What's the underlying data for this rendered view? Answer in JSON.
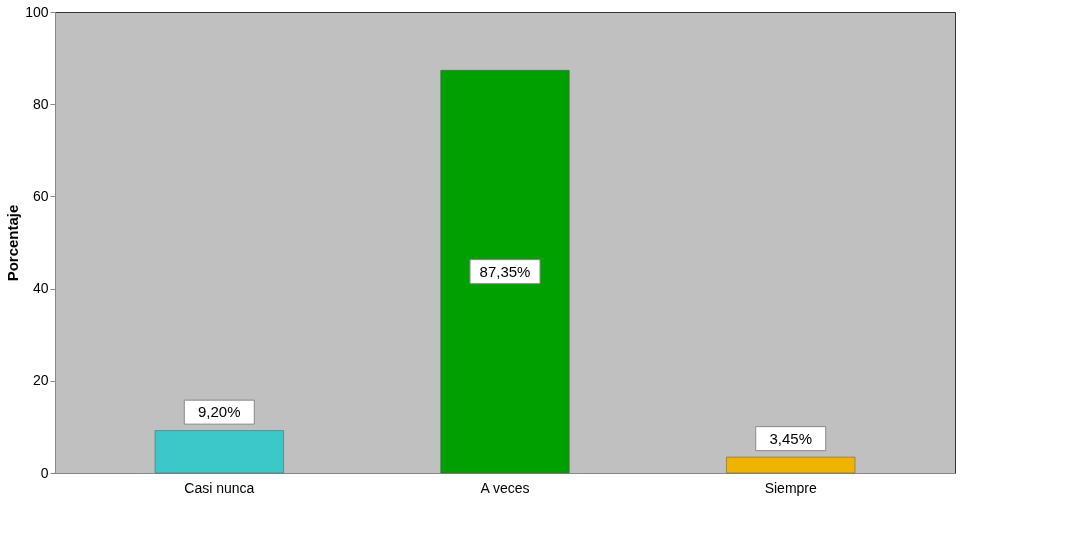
{
  "chart_data": {
    "type": "bar",
    "ylabel": "Porcentaje",
    "categories": [
      "Casi nunca",
      "A veces",
      "Siempre"
    ],
    "values": [
      9.2,
      87.35,
      3.45
    ],
    "colors": [
      "#3cc8c8",
      "#00a000",
      "#f0b400"
    ],
    "value_labels": [
      "9,20%",
      "87,35%",
      "3,45%"
    ],
    "ylim": [
      0,
      100
    ],
    "yticks": [
      0,
      20,
      40,
      60,
      80,
      100
    ],
    "grid": false
  }
}
